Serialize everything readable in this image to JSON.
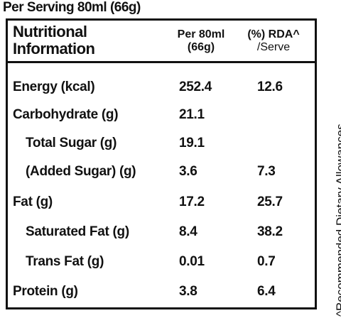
{
  "header": {
    "title": "Per Serving 80ml (66g)"
  },
  "table": {
    "columns": [
      [
        "Nutritional",
        "Information"
      ],
      [
        "Per 80ml",
        "(66g)"
      ],
      [
        "(%) RDA^",
        "/Serve"
      ]
    ],
    "rows": [
      {
        "label": "Energy (kcal)",
        "indent": false,
        "per": "252.4",
        "rda": "12.6"
      },
      {
        "label": "Carbohydrate (g)",
        "indent": false,
        "per": "21.1",
        "rda": null
      },
      {
        "label": "Total Sugar (g)",
        "indent": true,
        "per": "19.1",
        "rda": null
      },
      {
        "label": "(Added Sugar) (g)",
        "indent": true,
        "per": "3.6",
        "rda": "7.3"
      },
      {
        "label": "Fat (g)",
        "indent": false,
        "per": "17.2",
        "rda": "25.7"
      },
      {
        "label": "Saturated Fat (g)",
        "indent": true,
        "per": "8.4",
        "rda": "38.2"
      },
      {
        "label": "Trans Fat (g)",
        "indent": true,
        "per": "0.01",
        "rda": "0.7"
      },
      {
        "label": "Protein (g)",
        "indent": false,
        "per": "3.8",
        "rda": "6.4"
      }
    ]
  },
  "footnote": "^Recommended Dietary Allowances"
}
